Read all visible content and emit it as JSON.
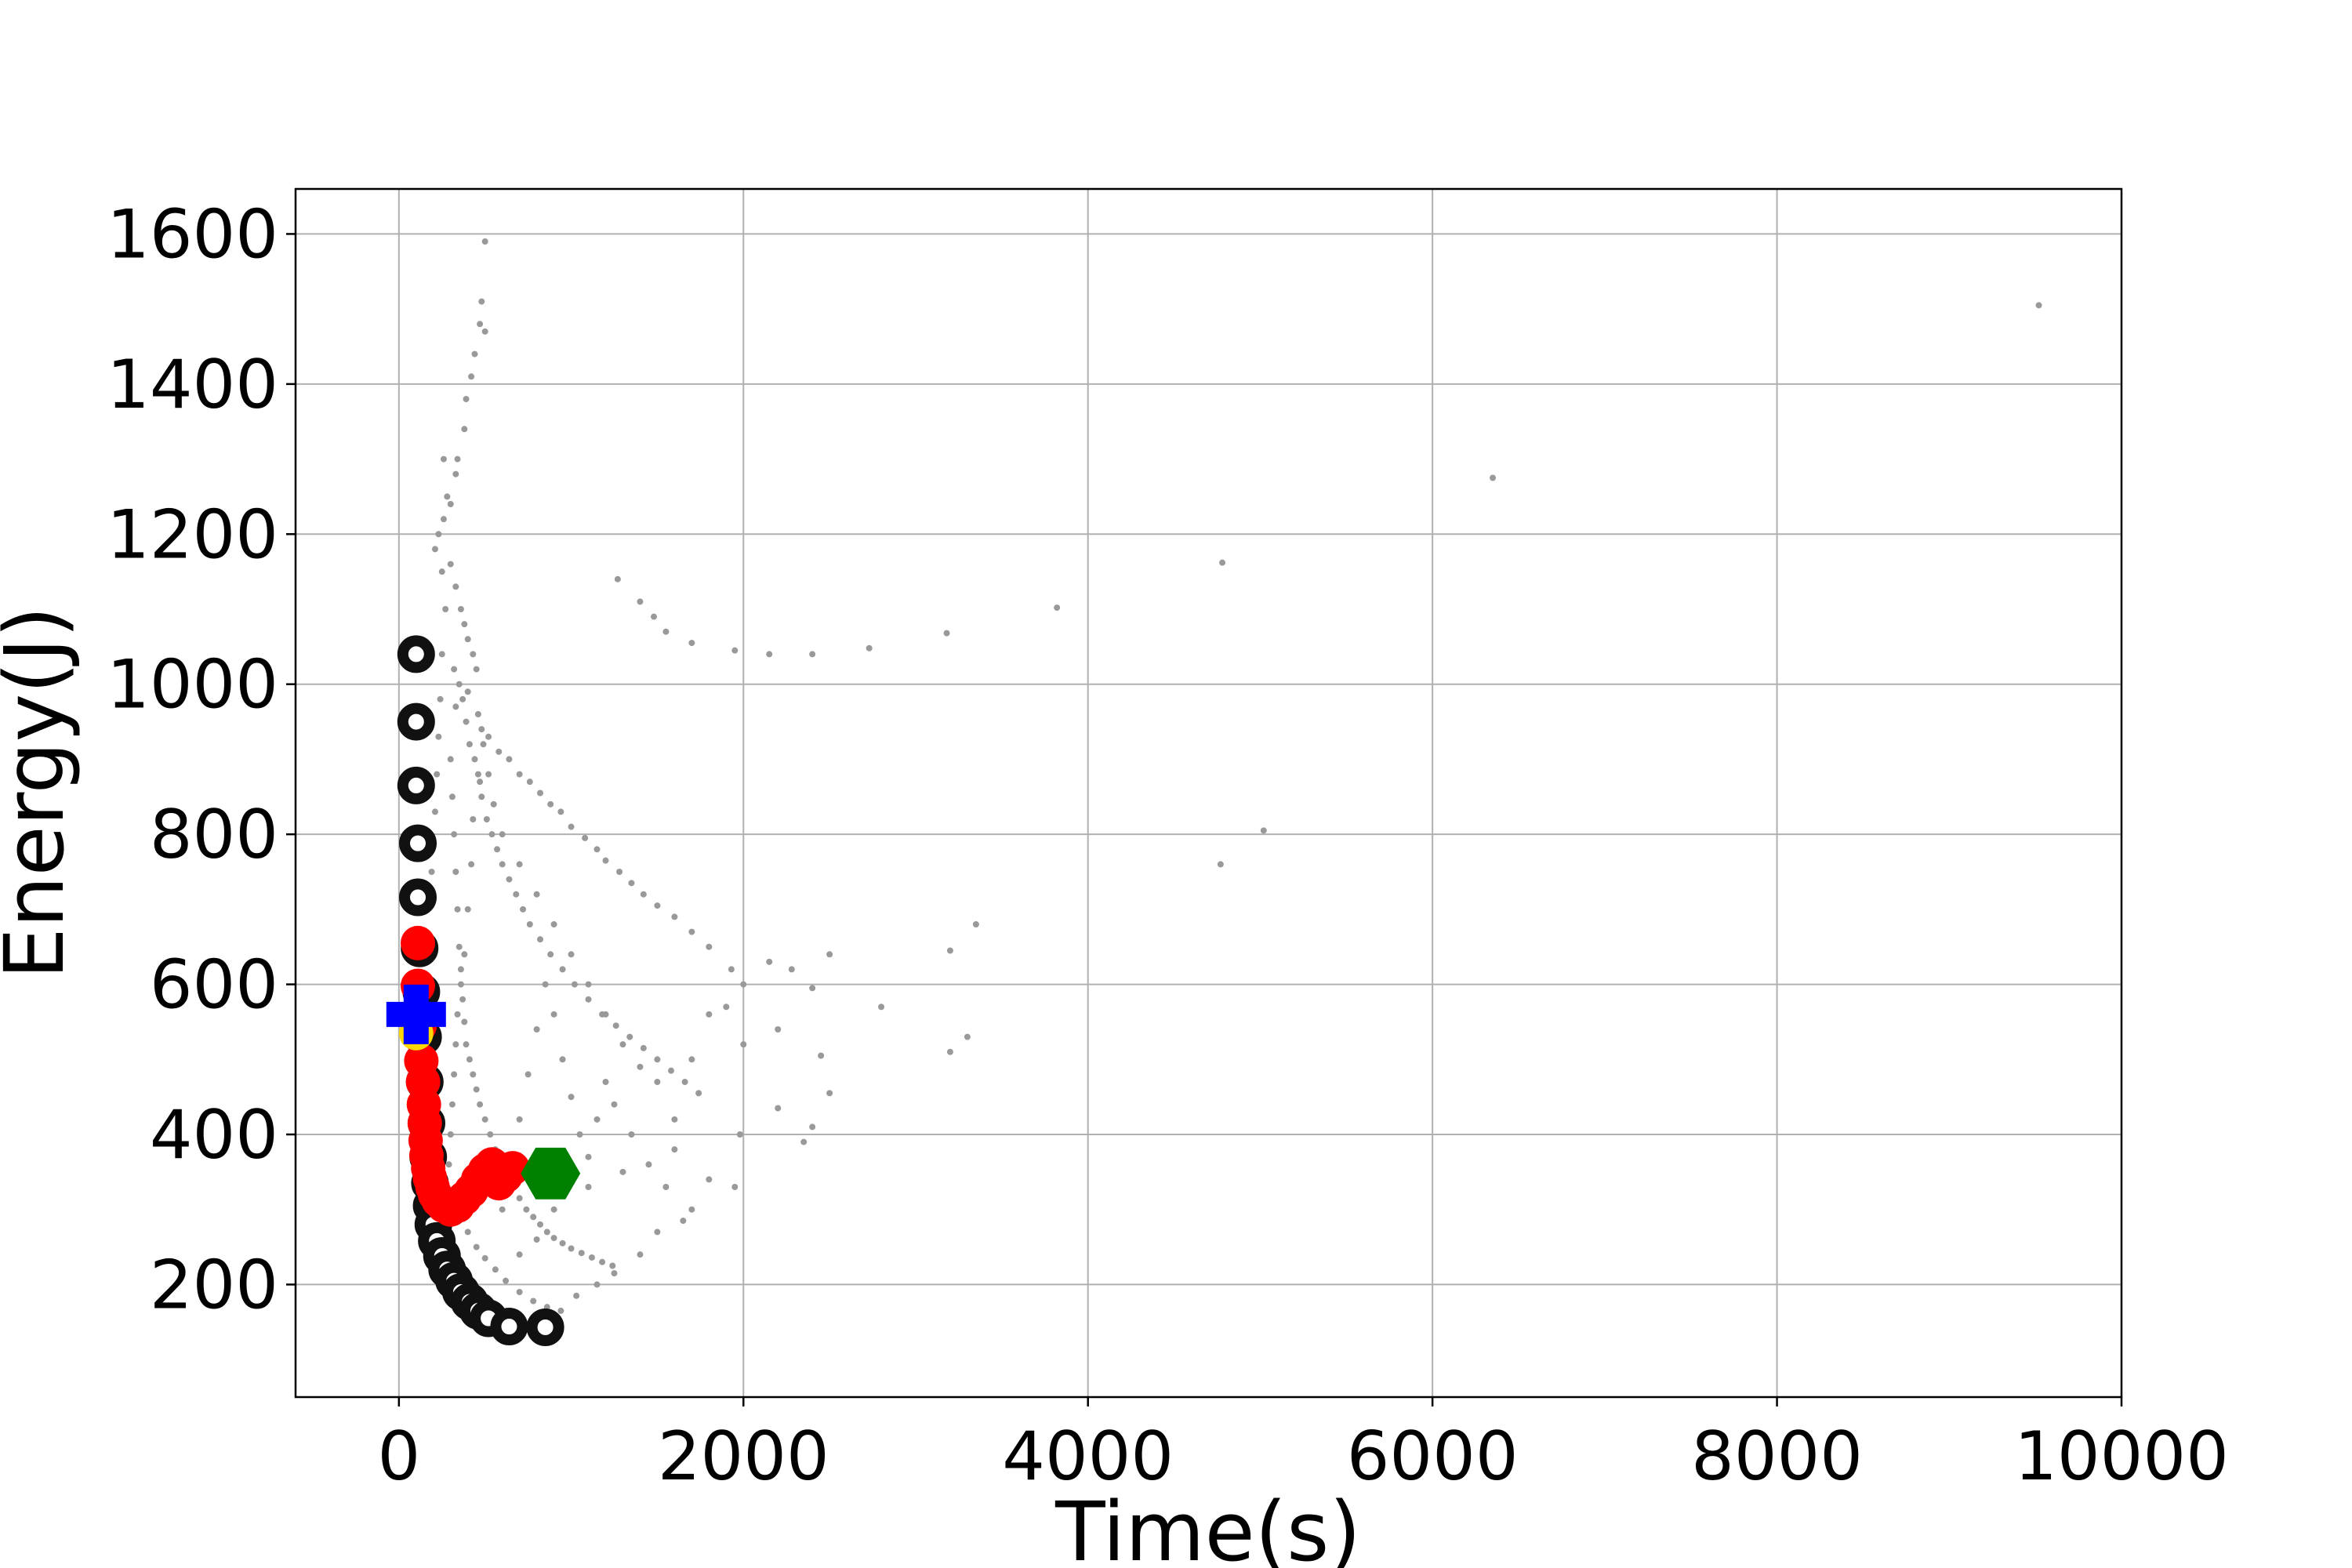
{
  "chart_data": {
    "type": "scatter",
    "title": "",
    "xlabel": "Time(s)",
    "ylabel": "Energy(J)",
    "xlim": [
      -600,
      10000
    ],
    "ylim": [
      50,
      1660
    ],
    "xticks": [
      0,
      2000,
      4000,
      6000,
      8000,
      10000
    ],
    "xtick_labels": [
      "0",
      "2000",
      "4000",
      "6000",
      "8000",
      "10000"
    ],
    "yticks": [
      200,
      400,
      600,
      800,
      1000,
      1200,
      1400,
      1600
    ],
    "ytick_labels": [
      "200",
      "400",
      "600",
      "800",
      "1000",
      "1200",
      "1400",
      "1600"
    ],
    "grid": true,
    "legend": "none",
    "series": [
      {
        "color": "#999999",
        "marker": "small-dot",
        "points": [
          [
            500,
            1590
          ],
          [
            480,
            1510
          ],
          [
            470,
            1480
          ],
          [
            500,
            1470
          ],
          [
            440,
            1440
          ],
          [
            420,
            1410
          ],
          [
            390,
            1380
          ],
          [
            380,
            1340
          ],
          [
            340,
            1300
          ],
          [
            330,
            1280
          ],
          [
            300,
            1240
          ],
          [
            260,
            1220
          ],
          [
            230,
            1200
          ],
          [
            210,
            1180
          ],
          [
            250,
            1150
          ],
          [
            330,
            1130
          ],
          [
            360,
            1100
          ],
          [
            380,
            1080
          ],
          [
            400,
            1060
          ],
          [
            430,
            1040
          ],
          [
            450,
            1020
          ],
          [
            400,
            990
          ],
          [
            330,
            970
          ],
          [
            460,
            960
          ],
          [
            480,
            940
          ],
          [
            520,
            930
          ],
          [
            580,
            910
          ],
          [
            640,
            900
          ],
          [
            700,
            880
          ],
          [
            760,
            870
          ],
          [
            820,
            855
          ],
          [
            880,
            840
          ],
          [
            940,
            830
          ],
          [
            1000,
            810
          ],
          [
            1080,
            795
          ],
          [
            1150,
            780
          ],
          [
            1200,
            765
          ],
          [
            1280,
            750
          ],
          [
            1350,
            735
          ],
          [
            1420,
            720
          ],
          [
            1500,
            705
          ],
          [
            1600,
            690
          ],
          [
            1700,
            670
          ],
          [
            1800,
            650
          ],
          [
            1930,
            620
          ],
          [
            2000,
            600
          ],
          [
            2150,
            630
          ],
          [
            2280,
            620
          ],
          [
            2400,
            595
          ],
          [
            2500,
            640
          ],
          [
            2800,
            570
          ],
          [
            3200,
            645
          ],
          [
            3350,
            680
          ],
          [
            3200,
            510
          ],
          [
            3300,
            530
          ],
          [
            2450,
            505
          ],
          [
            2200,
            540
          ],
          [
            2000,
            520
          ],
          [
            1900,
            570
          ],
          [
            1800,
            560
          ],
          [
            1700,
            500
          ],
          [
            1600,
            420
          ],
          [
            1500,
            470
          ],
          [
            1400,
            490
          ],
          [
            1300,
            520
          ],
          [
            1200,
            560
          ],
          [
            1100,
            600
          ],
          [
            1000,
            640
          ],
          [
            900,
            680
          ],
          [
            800,
            720
          ],
          [
            700,
            760
          ],
          [
            600,
            800
          ],
          [
            550,
            840
          ],
          [
            520,
            880
          ],
          [
            490,
            920
          ],
          [
            470,
            870
          ],
          [
            430,
            820
          ],
          [
            420,
            760
          ],
          [
            400,
            700
          ],
          [
            380,
            640
          ],
          [
            360,
            600
          ],
          [
            340,
            560
          ],
          [
            330,
            520
          ],
          [
            320,
            480
          ],
          [
            310,
            440
          ],
          [
            300,
            400
          ],
          [
            290,
            360
          ],
          [
            280,
            330
          ],
          [
            310,
            310
          ],
          [
            350,
            290
          ],
          [
            400,
            270
          ],
          [
            450,
            250
          ],
          [
            500,
            235
          ],
          [
            560,
            220
          ],
          [
            620,
            205
          ],
          [
            700,
            190
          ],
          [
            780,
            178
          ],
          [
            860,
            170
          ],
          [
            940,
            165
          ],
          [
            1030,
            185
          ],
          [
            1150,
            200
          ],
          [
            1250,
            215
          ],
          [
            1400,
            240
          ],
          [
            1500,
            270
          ],
          [
            1650,
            285
          ],
          [
            1700,
            300
          ],
          [
            1950,
            330
          ],
          [
            1980,
            400
          ],
          [
            2200,
            435
          ],
          [
            2350,
            390
          ],
          [
            2400,
            410
          ],
          [
            2500,
            455
          ],
          [
            1800,
            340
          ],
          [
            1600,
            380
          ],
          [
            1300,
            350
          ],
          [
            1100,
            330
          ],
          [
            900,
            300
          ],
          [
            800,
            260
          ],
          [
            700,
            240
          ],
          [
            600,
            300
          ],
          [
            650,
            360
          ],
          [
            700,
            420
          ],
          [
            750,
            480
          ],
          [
            800,
            540
          ],
          [
            850,
            600
          ],
          [
            900,
            560
          ],
          [
            950,
            500
          ],
          [
            1000,
            450
          ],
          [
            1050,
            400
          ],
          [
            1100,
            370
          ],
          [
            1150,
            420
          ],
          [
            1200,
            470
          ],
          [
            1250,
            440
          ],
          [
            1350,
            400
          ],
          [
            1450,
            360
          ],
          [
            1550,
            330
          ],
          [
            260,
            1300
          ],
          [
            280,
            1250
          ],
          [
            300,
            1160
          ],
          [
            270,
            1100
          ],
          [
            250,
            1040
          ],
          [
            240,
            980
          ],
          [
            230,
            930
          ],
          [
            220,
            880
          ],
          [
            210,
            830
          ],
          [
            200,
            790
          ],
          [
            190,
            750
          ],
          [
            320,
            1020
          ],
          [
            350,
            1000
          ],
          [
            370,
            980
          ],
          [
            390,
            950
          ],
          [
            410,
            920
          ],
          [
            440,
            900
          ],
          [
            460,
            880
          ],
          [
            480,
            850
          ],
          [
            510,
            820
          ],
          [
            540,
            800
          ],
          [
            570,
            780
          ],
          [
            600,
            760
          ],
          [
            640,
            740
          ],
          [
            680,
            720
          ],
          [
            720,
            700
          ],
          [
            760,
            680
          ],
          [
            820,
            660
          ],
          [
            880,
            640
          ],
          [
            950,
            620
          ],
          [
            1020,
            600
          ],
          [
            1100,
            580
          ],
          [
            1180,
            560
          ],
          [
            1260,
            545
          ],
          [
            1340,
            530
          ],
          [
            1420,
            515
          ],
          [
            1500,
            500
          ],
          [
            1580,
            485
          ],
          [
            1660,
            470
          ],
          [
            1740,
            455
          ],
          [
            300,
            900
          ],
          [
            310,
            850
          ],
          [
            320,
            800
          ],
          [
            330,
            750
          ],
          [
            340,
            700
          ],
          [
            350,
            650
          ],
          [
            360,
            620
          ],
          [
            370,
            580
          ],
          [
            380,
            550
          ],
          [
            390,
            520
          ],
          [
            410,
            500
          ],
          [
            430,
            480
          ],
          [
            450,
            460
          ],
          [
            470,
            440
          ],
          [
            500,
            420
          ],
          [
            530,
            400
          ],
          [
            560,
            380
          ],
          [
            590,
            360
          ],
          [
            620,
            345
          ],
          [
            660,
            330
          ],
          [
            700,
            315
          ],
          [
            740,
            300
          ],
          [
            780,
            290
          ],
          [
            820,
            280
          ],
          [
            860,
            270
          ],
          [
            900,
            262
          ],
          [
            950,
            255
          ],
          [
            1000,
            248
          ],
          [
            1060,
            242
          ],
          [
            1120,
            236
          ],
          [
            1180,
            230
          ],
          [
            1240,
            225
          ],
          [
            1270,
            1140
          ],
          [
            1400,
            1110
          ],
          [
            1480,
            1090
          ],
          [
            1550,
            1070
          ],
          [
            1700,
            1055
          ],
          [
            1950,
            1045
          ],
          [
            2150,
            1040
          ],
          [
            2400,
            1040
          ],
          [
            2730,
            1048
          ],
          [
            3180,
            1068
          ],
          [
            3820,
            1102
          ],
          [
            4780,
            1162
          ],
          [
            6350,
            1275
          ],
          [
            9520,
            1505
          ],
          [
            4770,
            760
          ],
          [
            5020,
            805
          ]
        ]
      },
      {
        "color": "#111111",
        "marker": "ring",
        "points": [
          [
            100,
            1040
          ],
          [
            100,
            950
          ],
          [
            100,
            865
          ],
          [
            110,
            788
          ],
          [
            110,
            716
          ],
          [
            120,
            648
          ],
          [
            130,
            590
          ],
          [
            140,
            530
          ],
          [
            150,
            470
          ],
          [
            160,
            415
          ],
          [
            170,
            370
          ],
          [
            180,
            335
          ],
          [
            190,
            305
          ],
          [
            200,
            280
          ],
          [
            220,
            258
          ],
          [
            250,
            238
          ],
          [
            280,
            220
          ],
          [
            320,
            205
          ],
          [
            360,
            190
          ],
          [
            410,
            177
          ],
          [
            460,
            165
          ],
          [
            520,
            155
          ],
          [
            640,
            144
          ],
          [
            850,
            143
          ]
        ]
      },
      {
        "color": "#ff0000",
        "marker": "circle",
        "points": [
          [
            110,
            655
          ],
          [
            110,
            598
          ],
          [
            120,
            545
          ],
          [
            130,
            498
          ],
          [
            140,
            470
          ],
          [
            145,
            440
          ],
          [
            150,
            415
          ],
          [
            155,
            392
          ],
          [
            160,
            372
          ],
          [
            170,
            355
          ],
          [
            180,
            342
          ],
          [
            195,
            330
          ],
          [
            210,
            320
          ],
          [
            230,
            312
          ],
          [
            260,
            305
          ],
          [
            300,
            300
          ],
          [
            340,
            305
          ],
          [
            380,
            315
          ],
          [
            420,
            325
          ],
          [
            460,
            340
          ],
          [
            500,
            352
          ],
          [
            540,
            360
          ],
          [
            580,
            335
          ],
          [
            620,
            345
          ],
          [
            660,
            355
          ]
        ]
      },
      {
        "color": "#ffd700",
        "marker": "circle",
        "points": [
          [
            100,
            535
          ]
        ]
      },
      {
        "color": "#0000ff",
        "marker": "plus",
        "points": [
          [
            100,
            560
          ]
        ]
      },
      {
        "color": "#008000",
        "marker": "hexagon",
        "points": [
          [
            880,
            348
          ]
        ]
      }
    ]
  }
}
